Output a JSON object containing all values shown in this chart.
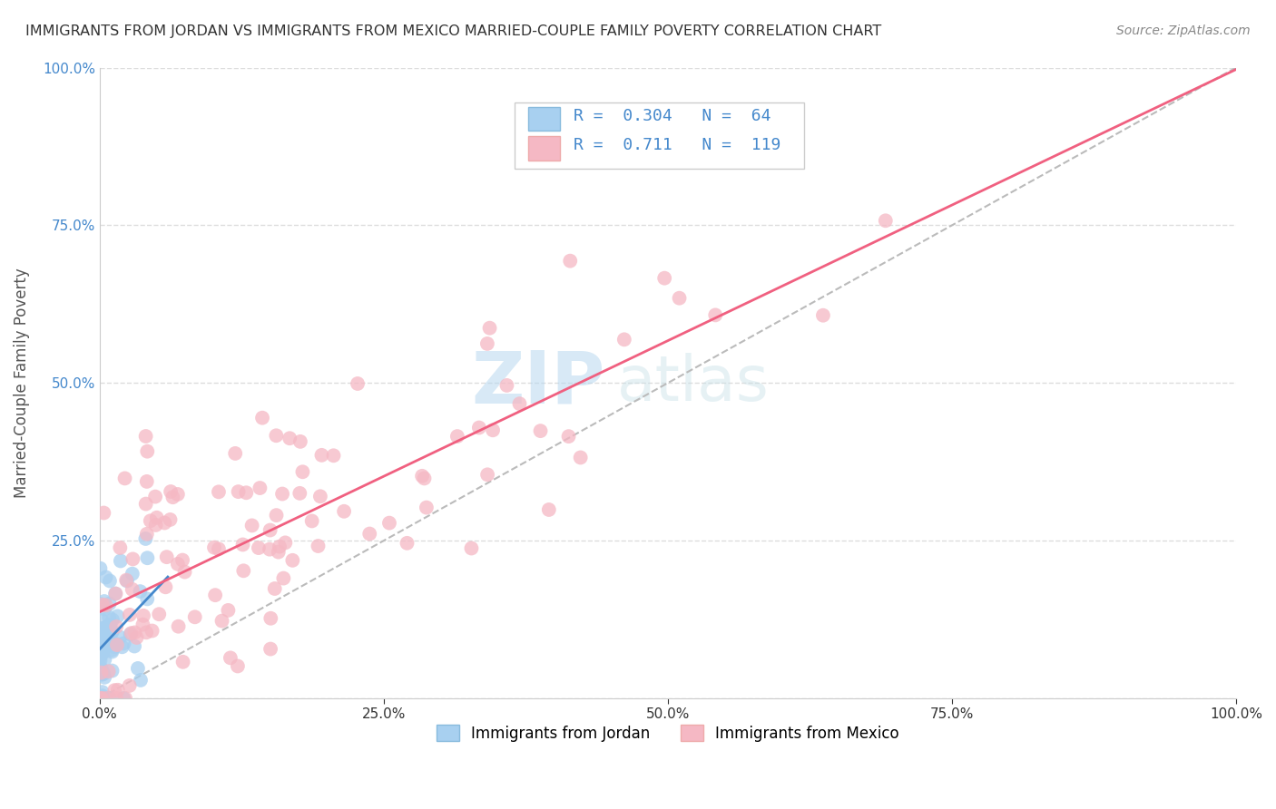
{
  "title": "IMMIGRANTS FROM JORDAN VS IMMIGRANTS FROM MEXICO MARRIED-COUPLE FAMILY POVERTY CORRELATION CHART",
  "source": "Source: ZipAtlas.com",
  "ylabel": "Married-Couple Family Poverty",
  "watermark_zip": "ZIP",
  "watermark_atlas": "atlas",
  "jordan_color": "#a8d0f0",
  "mexico_color": "#f5b8c4",
  "jordan_R": 0.304,
  "jordan_N": 64,
  "mexico_R": 0.711,
  "mexico_N": 119,
  "jordan_line_color": "#4488cc",
  "mexico_line_color": "#f06080",
  "diag_line_color": "#bbbbbb",
  "grid_color": "#dddddd",
  "legend_label_jordan": "Immigrants from Jordan",
  "legend_label_mexico": "Immigrants from Mexico",
  "tick_label_color": "#4488cc",
  "title_color": "#333333",
  "source_color": "#888888"
}
